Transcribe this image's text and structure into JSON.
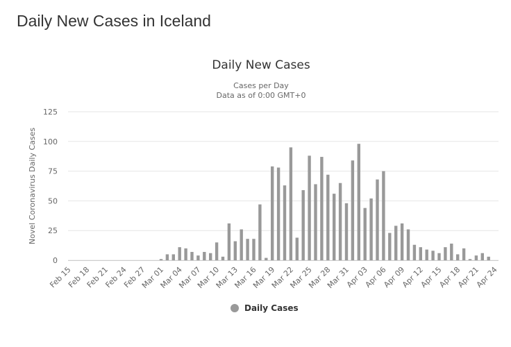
{
  "page": {
    "title": "Daily New Cases in Iceland"
  },
  "chart_data": {
    "type": "bar",
    "title": "Daily New Cases",
    "subtitle": [
      "Cases per Day",
      "Data as of 0:00 GMT+0"
    ],
    "xlabel": "",
    "ylabel": "Novel Coronavirus Daily Cases",
    "ylim": [
      0,
      125
    ],
    "yticks": [
      0,
      25,
      50,
      75,
      100,
      125
    ],
    "grid": true,
    "legend_position": "bottom-center",
    "bar_color": "#999999",
    "x_tick_labels": [
      "Feb 15",
      "Feb 18",
      "Feb 21",
      "Feb 24",
      "Feb 27",
      "Mar 01",
      "Mar 04",
      "Mar 07",
      "Mar 10",
      "Mar 13",
      "Mar 16",
      "Mar 19",
      "Mar 22",
      "Mar 25",
      "Mar 28",
      "Mar 31",
      "Apr 03",
      "Apr 06",
      "Apr 09",
      "Apr 12",
      "Apr 15",
      "Apr 18",
      "Apr 21",
      "Apr 24"
    ],
    "categories": [
      "Feb 15",
      "Feb 16",
      "Feb 17",
      "Feb 18",
      "Feb 19",
      "Feb 20",
      "Feb 21",
      "Feb 22",
      "Feb 23",
      "Feb 24",
      "Feb 25",
      "Feb 26",
      "Feb 27",
      "Feb 28",
      "Feb 29",
      "Mar 01",
      "Mar 02",
      "Mar 03",
      "Mar 04",
      "Mar 05",
      "Mar 06",
      "Mar 07",
      "Mar 08",
      "Mar 09",
      "Mar 10",
      "Mar 11",
      "Mar 12",
      "Mar 13",
      "Mar 14",
      "Mar 15",
      "Mar 16",
      "Mar 17",
      "Mar 18",
      "Mar 19",
      "Mar 20",
      "Mar 21",
      "Mar 22",
      "Mar 23",
      "Mar 24",
      "Mar 25",
      "Mar 26",
      "Mar 27",
      "Mar 28",
      "Mar 29",
      "Mar 30",
      "Mar 31",
      "Apr 01",
      "Apr 02",
      "Apr 03",
      "Apr 04",
      "Apr 05",
      "Apr 06",
      "Apr 07",
      "Apr 08",
      "Apr 09",
      "Apr 10",
      "Apr 11",
      "Apr 12",
      "Apr 13",
      "Apr 14",
      "Apr 15",
      "Apr 16",
      "Apr 17",
      "Apr 18",
      "Apr 19",
      "Apr 20",
      "Apr 21",
      "Apr 22",
      "Apr 23",
      "Apr 24"
    ],
    "series": [
      {
        "name": "Daily Cases",
        "values": [
          0,
          0,
          0,
          0,
          0,
          0,
          0,
          0,
          0,
          0,
          0,
          0,
          0,
          0,
          0,
          1,
          5,
          5,
          11,
          10,
          7,
          4,
          7,
          6,
          15,
          3,
          31,
          16,
          26,
          18,
          18,
          47,
          2,
          79,
          78,
          63,
          95,
          19,
          59,
          88,
          64,
          87,
          72,
          56,
          65,
          48,
          84,
          98,
          44,
          52,
          68,
          75,
          23,
          29,
          31,
          26,
          13,
          11,
          9,
          8,
          6,
          11,
          14,
          5,
          10,
          1,
          4,
          6,
          3,
          0
        ]
      }
    ]
  }
}
